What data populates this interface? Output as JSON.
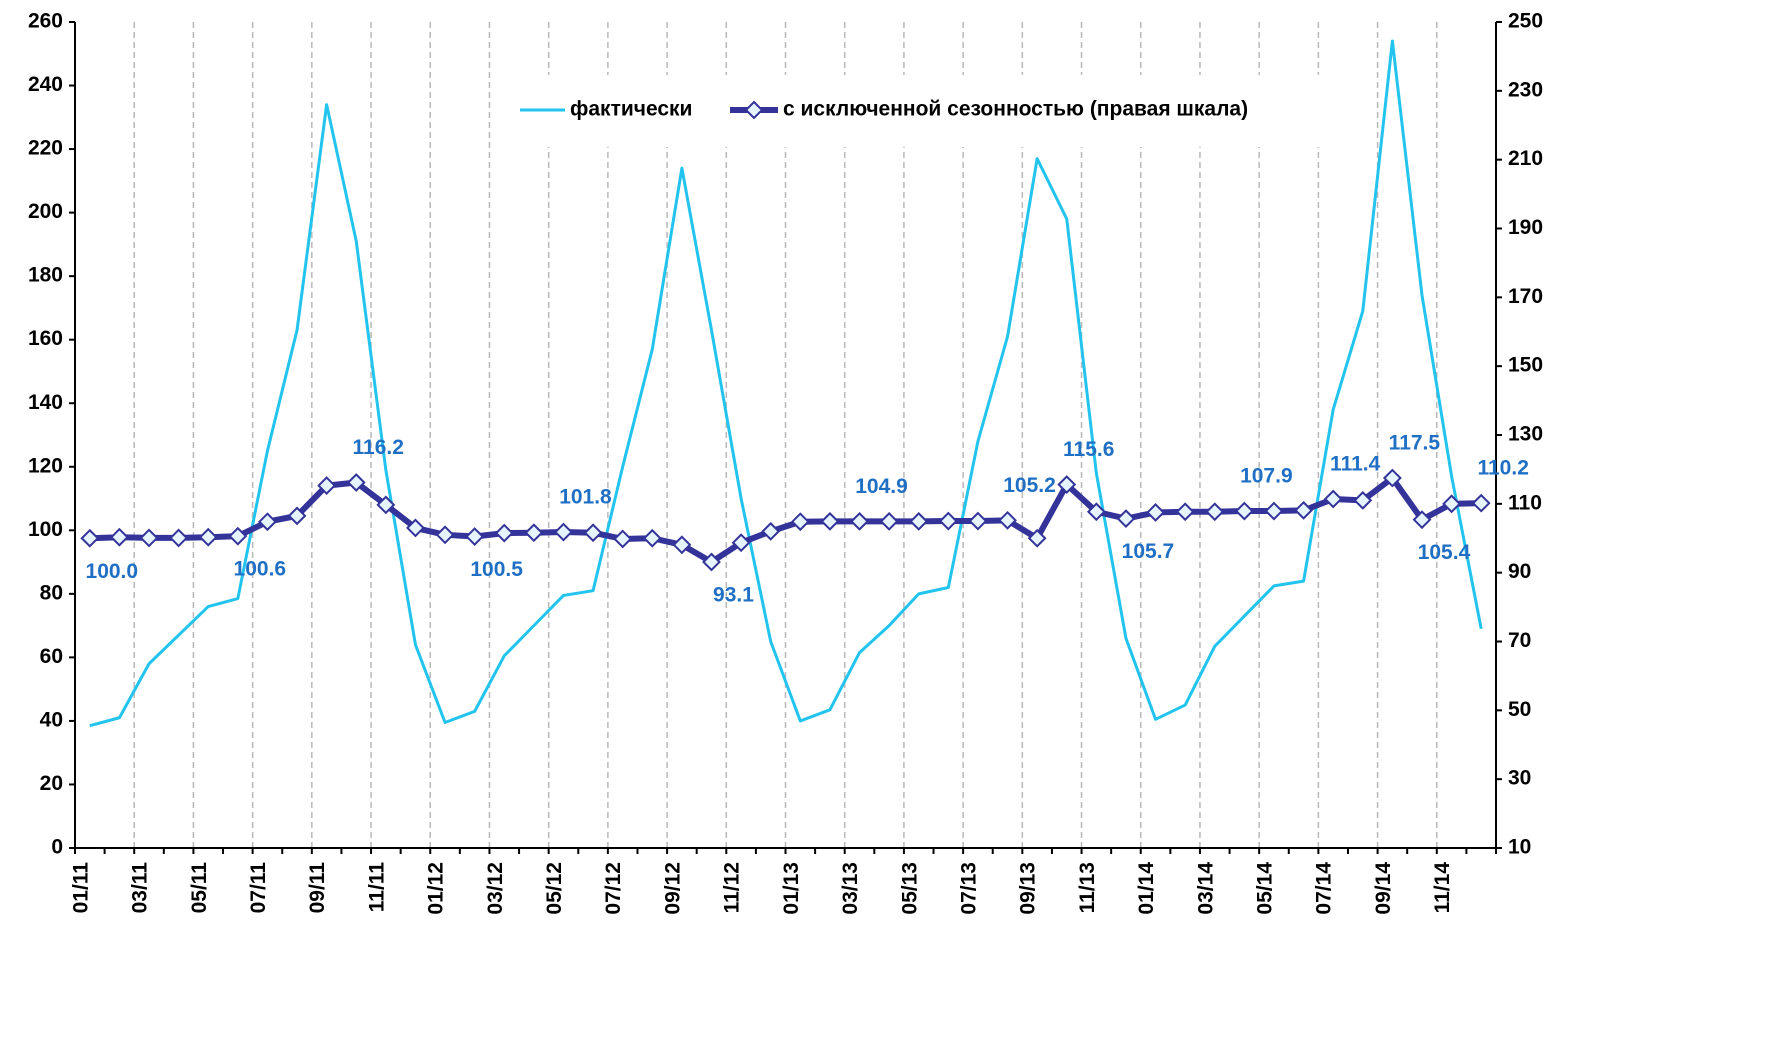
{
  "chart_data": {
    "type": "line",
    "categories": [
      "01/11",
      null,
      "03/11",
      null,
      "05/11",
      null,
      "07/11",
      null,
      "09/11",
      null,
      "11/11",
      null,
      "01/12",
      null,
      "03/12",
      null,
      "05/12",
      null,
      "07/12",
      null,
      "09/12",
      null,
      "11/12",
      null,
      "01/13",
      null,
      "03/13",
      null,
      "05/13",
      null,
      "07/13",
      null,
      "09/13",
      null,
      "11/13",
      null,
      "01/14",
      null,
      "03/14",
      null,
      "05/14",
      null,
      "07/14",
      null,
      "09/14",
      null,
      "11/14",
      null
    ],
    "series": [
      {
        "name": "фактически",
        "color": "#22c4ee",
        "values": [
          38.5,
          41,
          58,
          67,
          76,
          78.5,
          125,
          163,
          234,
          191,
          119,
          64,
          39.5,
          43,
          60.5,
          70,
          79.5,
          81,
          120,
          157,
          214,
          163,
          110,
          65,
          40,
          43.5,
          61.5,
          70,
          80,
          82,
          128,
          161,
          217,
          198,
          118,
          66,
          40.5,
          45,
          63.5,
          73,
          82.5,
          84,
          138,
          169,
          254,
          174,
          117,
          69
        ]
      },
      {
        "name": "с исключенной сезонностью (правая шкала)",
        "color": "#333399",
        "axis": "y2",
        "values": [
          100.0,
          100.3,
          100.1,
          100.1,
          100.3,
          100.6,
          104.8,
          106.5,
          115.3,
          116.2,
          109.7,
          103,
          101,
          100.5,
          101.5,
          101.6,
          101.8,
          101.6,
          99.8,
          100,
          98.1,
          93.1,
          98.7,
          102,
          104.8,
          104.9,
          104.9,
          104.9,
          104.9,
          105,
          105,
          105.2,
          100,
          115.6,
          107.7,
          105.7,
          107.5,
          107.7,
          107.7,
          107.9,
          107.9,
          108.1,
          111.4,
          111,
          117.5,
          105.4,
          110,
          110.2
        ],
        "value_labels": [
          "100.0",
          null,
          null,
          null,
          null,
          "100.6",
          null,
          null,
          null,
          "116.2",
          null,
          null,
          null,
          "100.5",
          null,
          null,
          "101.8",
          null,
          null,
          null,
          null,
          "93.1",
          null,
          null,
          null,
          null,
          "104.9",
          null,
          null,
          null,
          null,
          "105.2",
          null,
          "115.6",
          null,
          "105.7",
          null,
          null,
          null,
          "107.9",
          null,
          null,
          "111.4",
          null,
          "117.5",
          "105.4",
          null,
          "110.2"
        ]
      }
    ],
    "ylim": [
      0,
      260
    ],
    "yticks": [
      0,
      20,
      40,
      60,
      80,
      100,
      120,
      140,
      160,
      180,
      200,
      220,
      240,
      260
    ],
    "y2lim": [
      10,
      250
    ],
    "y2ticks": [
      10,
      30,
      50,
      70,
      90,
      110,
      130,
      150,
      170,
      190,
      210,
      230,
      250
    ],
    "grid": true,
    "legend": "top"
  }
}
